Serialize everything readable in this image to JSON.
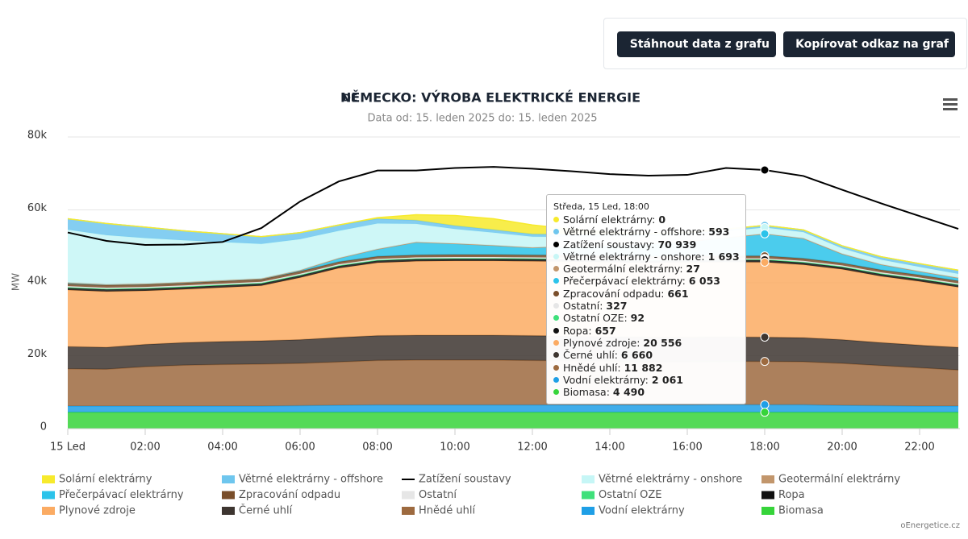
{
  "buttons": [
    "Stáhnout data z grafu",
    "Kopírovat odkaz na graf"
  ],
  "credit": "oEnergetice.cz",
  "chart_data": {
    "type": "stacked-area",
    "title_prefix": "DE",
    "title": "NĚMECKO: VÝROBA ELEKTRICKÉ ENERGIE",
    "subtitle": "Data od: 15. leden 2025 do: 15. leden 2025",
    "y_label": "MW",
    "categories": [
      "15 Led",
      null,
      "02:00",
      null,
      "04:00",
      null,
      "06:00",
      null,
      "08:00",
      null,
      "10:00",
      null,
      "12:00",
      null,
      "14:00",
      null,
      "16:00",
      null,
      "18:00",
      null,
      "20:00",
      null,
      "22:00",
      null
    ],
    "ylim": [
      0,
      80000
    ],
    "yticks": [
      0,
      {
        "value": 20000,
        "label": "20k"
      },
      {
        "value": 40000,
        "label": "40k"
      },
      {
        "value": 60000,
        "label": "60k"
      },
      {
        "value": 80000,
        "label": "80k"
      }
    ],
    "grid": true,
    "series": [
      {
        "name": "Solární elektrárny",
        "color": "#f7ea2c",
        "values": [
          0,
          0,
          0,
          0,
          0,
          0,
          0,
          0,
          300,
          1500,
          2800,
          3000,
          2500,
          1500,
          600,
          100,
          0,
          0,
          0,
          0,
          0,
          0,
          0,
          0
        ]
      },
      {
        "name": "Větrné elektrárny - offshore",
        "color": "#6ec6ee",
        "values": [
          3000,
          3200,
          3000,
          2600,
          2300,
          2000,
          1800,
          1600,
          1300,
          1000,
          900,
          800,
          700,
          700,
          700,
          600,
          600,
          600,
          593,
          600,
          700,
          800,
          900,
          1000
        ]
      },
      {
        "name": "Zatížení soustavy",
        "color": "#000000",
        "type": "line",
        "values": [
          53800,
          51500,
          50400,
          50500,
          51200,
          55000,
          62300,
          67800,
          70800,
          70800,
          71500,
          71800,
          71300,
          70600,
          69800,
          69400,
          69600,
          71500,
          70939,
          69300,
          65500,
          61800,
          58300,
          54800
        ]
      },
      {
        "name": "Větrné elektrárny - onshore",
        "color": "#c6f6f6",
        "values": [
          14500,
          13500,
          12500,
          11500,
          10500,
          9500,
          8500,
          7500,
          7000,
          5000,
          4000,
          3500,
          3000,
          2500,
          2200,
          2000,
          1800,
          1700,
          1693,
          1700,
          1500,
          1300,
          1200,
          1100
        ]
      },
      {
        "name": "Geotermální elektrárny",
        "color": "#c2966c",
        "values": [
          27,
          27,
          27,
          27,
          27,
          27,
          27,
          27,
          27,
          27,
          27,
          27,
          27,
          27,
          27,
          27,
          27,
          27,
          27,
          27,
          27,
          27,
          27,
          27
        ]
      },
      {
        "name": "Přečerpávací elektrárny",
        "color": "#2cc3ea",
        "values": [
          300,
          200,
          200,
          200,
          200,
          200,
          300,
          1000,
          2000,
          3500,
          3000,
          2500,
          2000,
          2500,
          3000,
          3500,
          4000,
          5000,
          6053,
          5500,
          2500,
          1500,
          1000,
          800
        ]
      },
      {
        "name": "Zpracování odpadu",
        "color": "#7a4e2a",
        "values": [
          661,
          661,
          661,
          661,
          661,
          661,
          661,
          661,
          661,
          661,
          661,
          661,
          661,
          661,
          661,
          661,
          661,
          661,
          661,
          661,
          661,
          661,
          661,
          661
        ]
      },
      {
        "name": "Ostatní",
        "color": "#e6e6e6",
        "values": [
          327,
          327,
          327,
          327,
          327,
          327,
          327,
          327,
          327,
          327,
          327,
          327,
          327,
          327,
          327,
          327,
          327,
          327,
          327,
          327,
          327,
          327,
          327,
          327
        ]
      },
      {
        "name": "Ostatní OZE",
        "color": "#3fe07a",
        "values": [
          92,
          92,
          92,
          92,
          92,
          92,
          92,
          92,
          92,
          92,
          92,
          92,
          92,
          92,
          92,
          92,
          92,
          92,
          92,
          92,
          92,
          92,
          92,
          92
        ]
      },
      {
        "name": "Ropa",
        "color": "#111111",
        "values": [
          657,
          657,
          657,
          657,
          657,
          657,
          657,
          657,
          657,
          657,
          657,
          657,
          657,
          657,
          657,
          657,
          657,
          657,
          657,
          657,
          657,
          657,
          657,
          657
        ]
      },
      {
        "name": "Plynové zdroje",
        "color": "#fbab63",
        "values": [
          15500,
          15300,
          14700,
          14600,
          14800,
          15100,
          17000,
          19000,
          20000,
          20300,
          20400,
          20400,
          20400,
          20400,
          20400,
          20400,
          20500,
          20500,
          20556,
          20000,
          19300,
          18200,
          17500,
          16500
        ]
      },
      {
        "name": "Černé uhlí",
        "color": "#3d3530",
        "values": [
          6100,
          6000,
          6100,
          6200,
          6300,
          6400,
          6500,
          6700,
          6800,
          6800,
          6800,
          6800,
          6800,
          6800,
          6700,
          6700,
          6700,
          6700,
          6660,
          6600,
          6500,
          6300,
          6200,
          6200
        ]
      },
      {
        "name": "Hnědé uhlí",
        "color": "#9d6a3f",
        "values": [
          10200,
          10100,
          10800,
          11200,
          11400,
          11500,
          11600,
          11900,
          12200,
          12300,
          12300,
          12300,
          12200,
          12100,
          12000,
          11900,
          11900,
          11900,
          11882,
          11800,
          11500,
          11000,
          10500,
          9900
        ]
      },
      {
        "name": "Vodní elektrárny",
        "color": "#1f9fe6",
        "values": [
          1700,
          1700,
          1700,
          1700,
          1700,
          1700,
          1800,
          1900,
          2000,
          2000,
          2000,
          2000,
          2000,
          2000,
          2000,
          2000,
          2000,
          2050,
          2061,
          2050,
          1900,
          1800,
          1700,
          1700
        ]
      },
      {
        "name": "Biomasa",
        "color": "#36d43a",
        "values": [
          4500,
          4500,
          4500,
          4500,
          4500,
          4500,
          4500,
          4500,
          4500,
          4500,
          4500,
          4500,
          4500,
          4500,
          4500,
          4500,
          4500,
          4500,
          4490,
          4490,
          4490,
          4490,
          4490,
          4490
        ]
      }
    ],
    "tooltip": {
      "title": "Středa, 15 Led, 18:00",
      "x": "18:00",
      "labels": [
        "0",
        "593",
        "70 939",
        "1 693",
        "27",
        "6 053",
        "661",
        "327",
        "92",
        "657",
        "20 556",
        "6 660",
        "11 882",
        "2 061",
        "4 490"
      ]
    }
  }
}
